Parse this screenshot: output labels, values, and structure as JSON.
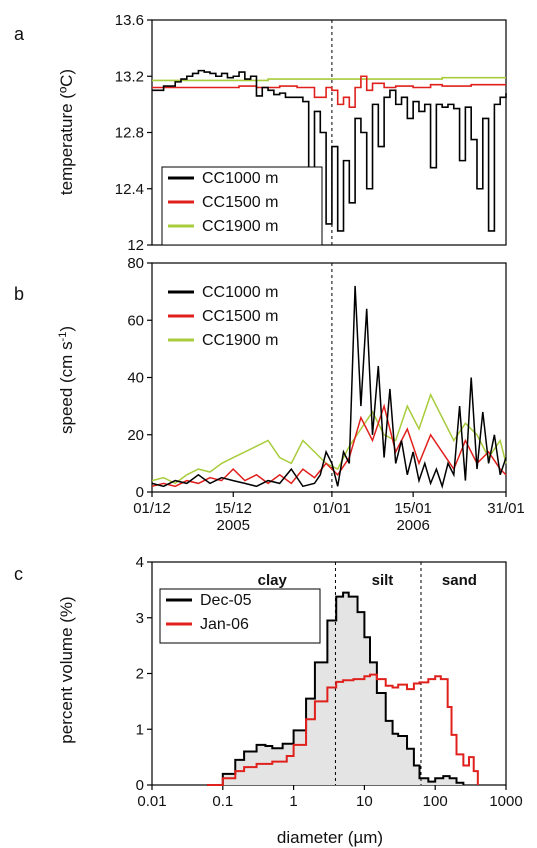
{
  "chart_data": [
    {
      "panel": "a",
      "type": "line",
      "ylabel": "temperature (ºC)",
      "ylim": [
        12.0,
        13.6
      ],
      "yticks": [
        "12",
        "12.4",
        "12.8",
        "13.2",
        "13.6"
      ],
      "xlim_days": [
        0,
        61
      ],
      "legend": {
        "placement": "bottom-left",
        "entries": [
          "CC1000 m",
          "CC1500 m",
          "CC1900 m"
        ]
      },
      "series": [
        {
          "name": "CC1000 m",
          "color": "#000000",
          "x": [
            0,
            2,
            4,
            5,
            6,
            7,
            8,
            9,
            10,
            11,
            12,
            13,
            14,
            15,
            16,
            17,
            18,
            19,
            20,
            21,
            22,
            23,
            24,
            25,
            26,
            27,
            28,
            29,
            30,
            31,
            32,
            33,
            34,
            35,
            36,
            37,
            38,
            39,
            40,
            41,
            42,
            43,
            44,
            45,
            46,
            47,
            48,
            49,
            50,
            51,
            52,
            53,
            54,
            55,
            56,
            57,
            58,
            59,
            60,
            61
          ],
          "y": [
            13.1,
            13.13,
            13.16,
            13.18,
            13.2,
            13.22,
            13.24,
            13.23,
            13.22,
            13.2,
            13.22,
            13.19,
            13.2,
            13.23,
            13.18,
            13.2,
            13.06,
            13.12,
            13.1,
            13.07,
            13.08,
            13.05,
            13.05,
            13.05,
            13.02,
            12.5,
            12.95,
            12.8,
            12.15,
            12.7,
            12.1,
            12.6,
            12.3,
            12.9,
            12.8,
            12.4,
            13.0,
            12.7,
            13.05,
            13.1,
            13.0,
            13.05,
            12.9,
            13.02,
            12.95,
            13.0,
            12.55,
            13.0,
            12.98,
            13.0,
            12.97,
            12.6,
            12.98,
            12.75,
            12.4,
            12.9,
            12.1,
            13.0,
            13.05,
            13.08
          ]
        },
        {
          "name": "CC1500 m",
          "color": "#e0201c",
          "x": [
            0,
            5,
            10,
            15,
            18,
            20,
            22,
            25,
            27,
            28,
            30,
            31,
            32,
            33,
            34,
            35,
            36,
            37,
            38,
            40,
            42,
            45,
            48,
            50,
            55,
            61
          ],
          "y": [
            13.12,
            13.12,
            13.12,
            13.13,
            13.12,
            13.12,
            13.13,
            13.12,
            13.12,
            13.05,
            13.12,
            13.1,
            13.0,
            13.05,
            12.98,
            13.12,
            13.2,
            13.1,
            13.15,
            13.12,
            13.13,
            13.12,
            13.14,
            13.13,
            13.14,
            13.14
          ]
        },
        {
          "name": "CC1900 m",
          "color": "#a8cc3c",
          "x": [
            0,
            10,
            20,
            30,
            40,
            50,
            61
          ],
          "y": [
            13.17,
            13.17,
            13.18,
            13.18,
            13.18,
            13.19,
            13.19
          ]
        }
      ]
    },
    {
      "panel": "b",
      "type": "line",
      "ylabel": "speed (cm s-1)",
      "ylim": [
        0,
        80
      ],
      "yticks": [
        "0",
        "20",
        "40",
        "60",
        "80"
      ],
      "xlim_days": [
        0,
        61
      ],
      "xticks": [
        {
          "day": 0,
          "label": "01/12",
          "year": ""
        },
        {
          "day": 14,
          "label": "15/12",
          "year": "2005"
        },
        {
          "day": 31,
          "label": "01/01",
          "year": ""
        },
        {
          "day": 45,
          "label": "15/01",
          "year": "2006"
        },
        {
          "day": 61,
          "label": "31/01",
          "year": ""
        }
      ],
      "legend": {
        "placement": "top-left",
        "entries": [
          "CC1000 m",
          "CC1500 m",
          "CC1900 m"
        ]
      },
      "series": [
        {
          "name": "CC1900 m",
          "color": "#a8cc3c",
          "x": [
            0,
            2,
            4,
            6,
            8,
            10,
            12,
            14,
            16,
            18,
            20,
            22,
            24,
            26,
            28,
            30,
            32,
            34,
            36,
            38,
            40,
            42,
            44,
            46,
            48,
            50,
            52,
            54,
            56,
            58,
            60,
            61
          ],
          "y": [
            4,
            5,
            3,
            6,
            8,
            7,
            10,
            12,
            14,
            16,
            18,
            12,
            10,
            18,
            14,
            10,
            8,
            16,
            22,
            28,
            20,
            18,
            30,
            22,
            34,
            26,
            18,
            24,
            20,
            12,
            18,
            10
          ]
        },
        {
          "name": "CC1500 m",
          "color": "#e0201c",
          "x": [
            0,
            2,
            4,
            6,
            8,
            10,
            12,
            14,
            16,
            18,
            20,
            22,
            24,
            26,
            28,
            30,
            32,
            34,
            36,
            38,
            40,
            42,
            44,
            46,
            48,
            50,
            52,
            54,
            56,
            58,
            60,
            61
          ],
          "y": [
            2,
            3,
            2,
            4,
            3,
            5,
            4,
            8,
            4,
            6,
            3,
            6,
            3,
            8,
            5,
            10,
            6,
            12,
            26,
            18,
            30,
            14,
            22,
            10,
            20,
            14,
            8,
            18,
            10,
            14,
            8,
            6
          ]
        },
        {
          "name": "CC1000 m",
          "color": "#000000",
          "x": [
            0,
            2,
            4,
            6,
            8,
            10,
            12,
            14,
            16,
            18,
            20,
            22,
            24,
            26,
            28,
            29,
            30,
            31,
            32,
            33,
            34,
            35,
            36,
            37,
            38,
            39,
            40,
            41,
            42,
            43,
            44,
            45,
            46,
            47,
            48,
            49,
            50,
            51,
            52,
            53,
            54,
            55,
            56,
            57,
            58,
            59,
            60,
            61
          ],
          "y": [
            3,
            2,
            4,
            3,
            6,
            3,
            5,
            4,
            3,
            2,
            4,
            3,
            8,
            2,
            3,
            6,
            14,
            10,
            2,
            14,
            10,
            72,
            30,
            64,
            20,
            44,
            12,
            36,
            10,
            18,
            6,
            14,
            4,
            10,
            3,
            8,
            2,
            10,
            6,
            30,
            4,
            40,
            8,
            28,
            10,
            20,
            6,
            12
          ]
        }
      ]
    },
    {
      "panel": "c",
      "type": "area",
      "xlabel": "diameter (µm)",
      "ylabel": "percent volume (%)",
      "xscale": "log",
      "xlim": [
        0.01,
        1000
      ],
      "ylim": [
        0,
        4
      ],
      "xticks": [
        "0.01",
        "0.1",
        "1",
        "10",
        "100",
        "1000"
      ],
      "yticks": [
        "0",
        "1",
        "2",
        "3",
        "4"
      ],
      "vlines": [
        3.9,
        63
      ],
      "annotations": [
        "clay",
        "silt",
        "sand"
      ],
      "legend": {
        "placement": "top-left",
        "entries": [
          "Dec-05",
          "Jan-06"
        ]
      },
      "series": [
        {
          "name": "Dec-05",
          "color": "#000000",
          "fill": "#e4e4e4",
          "x": [
            0.06,
            0.1,
            0.15,
            0.2,
            0.3,
            0.4,
            0.5,
            0.7,
            1,
            1.5,
            2,
            3,
            4,
            5,
            6,
            8,
            10,
            12,
            15,
            20,
            25,
            30,
            40,
            50,
            60,
            80,
            100,
            130,
            160,
            200,
            250
          ],
          "y": [
            0,
            0.2,
            0.45,
            0.6,
            0.72,
            0.7,
            0.66,
            0.74,
            0.98,
            1.55,
            2.2,
            2.95,
            3.38,
            3.45,
            3.38,
            3.1,
            2.65,
            2.2,
            1.65,
            1.15,
            0.92,
            0.88,
            0.65,
            0.35,
            0.12,
            0.06,
            0.12,
            0.16,
            0.12,
            0.04,
            0
          ]
        },
        {
          "name": "Jan-06",
          "color": "#e0201c",
          "x": [
            0.06,
            0.1,
            0.15,
            0.2,
            0.3,
            0.5,
            0.8,
            1,
            1.5,
            2,
            3,
            4,
            5,
            7,
            10,
            12,
            15,
            20,
            25,
            30,
            40,
            50,
            60,
            80,
            100,
            120,
            150,
            170,
            200,
            250,
            300,
            350,
            400
          ],
          "y": [
            0,
            0.12,
            0.25,
            0.32,
            0.38,
            0.42,
            0.52,
            0.72,
            1.18,
            1.5,
            1.75,
            1.85,
            1.88,
            1.9,
            1.95,
            1.98,
            1.9,
            1.78,
            1.75,
            1.8,
            1.72,
            1.82,
            1.84,
            1.9,
            1.95,
            1.9,
            1.4,
            0.9,
            0.55,
            0.35,
            0.5,
            0.25,
            0
          ]
        }
      ]
    }
  ]
}
